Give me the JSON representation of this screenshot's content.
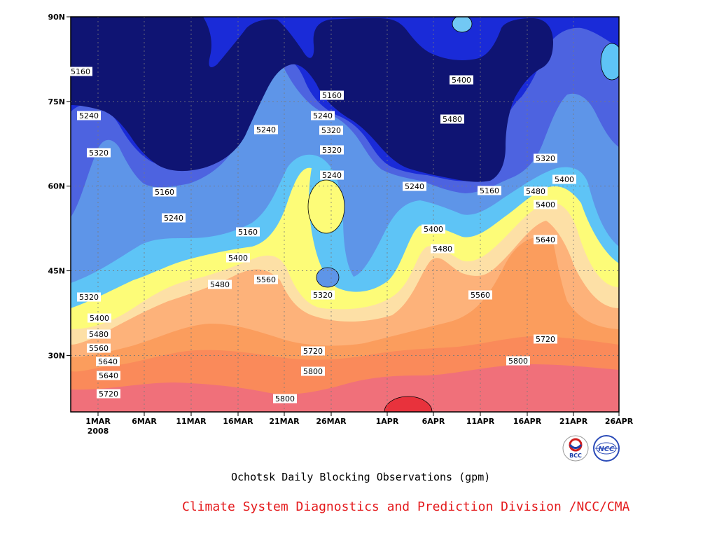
{
  "chart_data": {
    "type": "heatmap",
    "title": "Ochotsk Daily Blocking Observations (gpm)",
    "xlabel": "",
    "ylabel": "",
    "x_ticks": [
      "1MAR",
      "6MAR",
      "11MAR",
      "16MAR",
      "21MAR",
      "26MAR",
      "1APR",
      "6APR",
      "11APR",
      "16APR",
      "21APR",
      "26APR"
    ],
    "x_year": "2008",
    "y_ticks": [
      "30N",
      "45N",
      "60N",
      "75N",
      "90N"
    ],
    "x_range": [
      "2008-02-28",
      "2008-04-26"
    ],
    "ylim": [
      20,
      90
    ],
    "grid": true,
    "contour_levels": [
      5160,
      5240,
      5320,
      5400,
      5480,
      5560,
      5640,
      5720,
      5800
    ],
    "contour_labels": [
      "5160",
      "5240",
      "5320",
      "5160",
      "5240",
      "5160",
      "5240",
      "5320",
      "5240",
      "5320",
      "5400",
      "5480",
      "5240",
      "5160",
      "5160",
      "5240",
      "5320",
      "5400",
      "5480",
      "5400",
      "5320",
      "5400",
      "5480",
      "5560",
      "5640",
      "5400",
      "5480",
      "5560",
      "5320",
      "5400",
      "5480",
      "5560",
      "5640",
      "5720",
      "5800",
      "5640",
      "5720",
      "5720",
      "5800",
      "5800"
    ]
  },
  "footer": {
    "title": "Ochotsk Daily Blocking Observations (gpm)",
    "credit": "Climate System Diagnostics and Prediction Division /NCC/CMA",
    "logo_left_text": "BCC",
    "logo_right_text": "NCC"
  }
}
